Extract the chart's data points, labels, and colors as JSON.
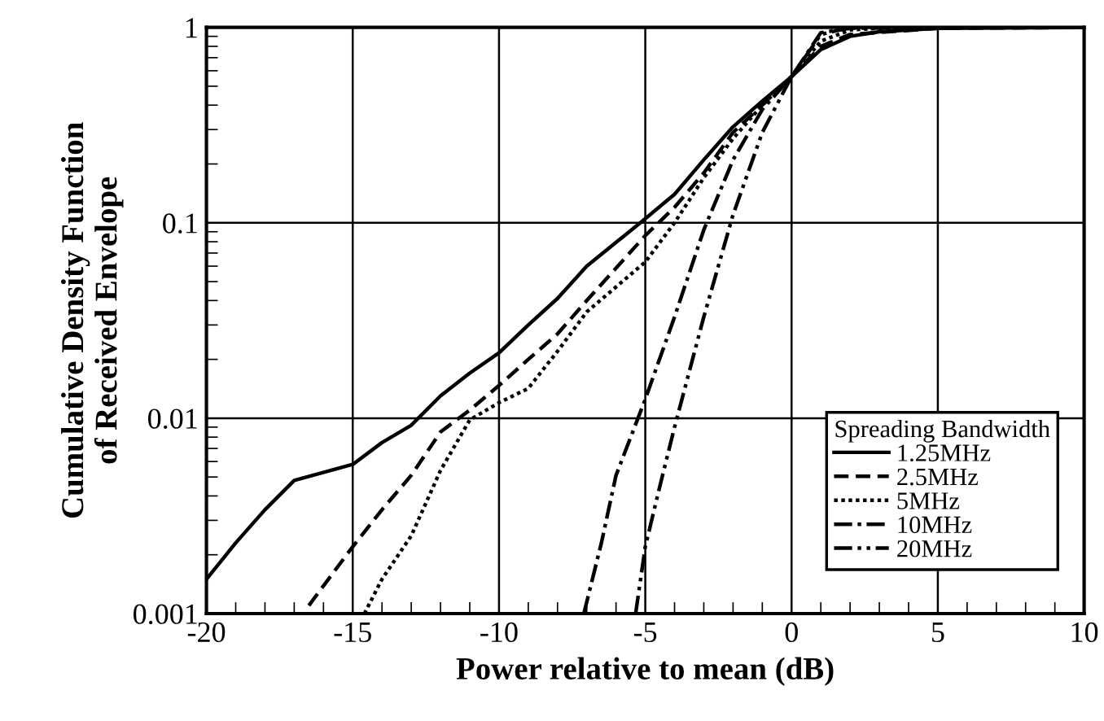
{
  "chart_data": {
    "type": "line",
    "xlabel": "Power relative to mean (dB)",
    "ylabel": "Cumulative Density Function\nof Received Envelope",
    "legend_title": "Spreading Bandwidth",
    "legend": "bottom right",
    "log": "y",
    "grid": true,
    "marker": "none",
    "xlim": [
      -20,
      10
    ],
    "xticks": [
      -20,
      -15,
      -10,
      -5,
      0,
      5,
      10
    ],
    "ylim": [
      0.001,
      1
    ],
    "yticks": [
      0.001,
      0.01,
      0.1,
      1
    ],
    "series": [
      {
        "name": "1.25MHz",
        "color": "#000000",
        "line_style": "solid",
        "x": [
          -20,
          -19,
          -18,
          -17,
          -15,
          -14,
          -13,
          -12,
          -11,
          -10,
          -9,
          -8,
          -7,
          -5,
          -4,
          -3,
          -2,
          -1,
          0,
          1,
          2,
          3,
          5,
          10
        ],
        "values": [
          0.0015,
          0.0023,
          0.0034,
          0.0048,
          0.0058,
          0.0075,
          0.0092,
          0.013,
          0.017,
          0.0216,
          0.03,
          0.041,
          0.06,
          0.105,
          0.14,
          0.21,
          0.31,
          0.42,
          0.56,
          0.77,
          0.9,
          0.95,
          0.99,
          1.0
        ]
      },
      {
        "name": "2.5MHz",
        "color": "#000000",
        "line_style": "dashed",
        "x": [
          -16.5,
          -15,
          -14,
          -13,
          -12,
          -11,
          -10,
          -9,
          -8,
          -7,
          -5,
          -4,
          -3,
          -2,
          -1,
          0,
          1,
          2,
          5,
          10
        ],
        "values": [
          0.0011,
          0.0022,
          0.0034,
          0.0051,
          0.0085,
          0.011,
          0.0147,
          0.02,
          0.027,
          0.04,
          0.086,
          0.12,
          0.18,
          0.29,
          0.4,
          0.56,
          0.8,
          0.92,
          0.99,
          1.0
        ]
      },
      {
        "name": "5MHz",
        "color": "#000000",
        "line_style": "dotted",
        "x": [
          -14.6,
          -14,
          -13,
          -12,
          -11,
          -10,
          -9,
          -8,
          -7,
          -5,
          -4,
          -3,
          -2,
          -1,
          0,
          1,
          2,
          3,
          5,
          10
        ],
        "values": [
          0.001,
          0.0015,
          0.0025,
          0.0054,
          0.0098,
          0.012,
          0.0142,
          0.022,
          0.035,
          0.063,
          0.1,
          0.17,
          0.27,
          0.4,
          0.56,
          0.85,
          0.97,
          0.99,
          1.0,
          1.0
        ]
      },
      {
        "name": "10MHz",
        "color": "#000000",
        "line_style": "dashdot",
        "x": [
          -7.1,
          -6.5,
          -6,
          -5,
          -4,
          -3,
          -2,
          -1,
          0,
          1,
          2,
          5,
          10
        ],
        "values": [
          0.001,
          0.0023,
          0.0051,
          0.0125,
          0.033,
          0.092,
          0.21,
          0.38,
          0.56,
          0.94,
          0.99,
          1.0,
          1.0
        ]
      },
      {
        "name": "20MHz",
        "color": "#000000",
        "line_style": "dashdotdot",
        "x": [
          -5.33,
          -5,
          -4.5,
          -4,
          -3,
          -2,
          -1,
          0,
          1,
          2,
          5,
          10
        ],
        "values": [
          0.001,
          0.0022,
          0.0045,
          0.009,
          0.033,
          0.11,
          0.29,
          0.56,
          0.92,
          1.0,
          1.0,
          1.0
        ]
      }
    ]
  }
}
